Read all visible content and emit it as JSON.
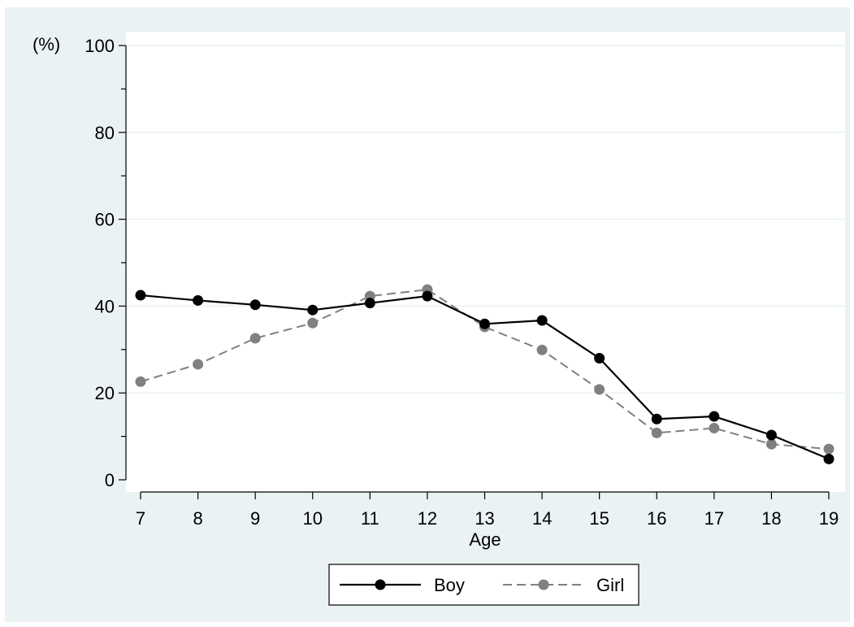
{
  "chart_data": {
    "type": "line",
    "x": [
      7,
      8,
      9,
      10,
      11,
      12,
      13,
      14,
      15,
      16,
      17,
      18,
      19
    ],
    "series": [
      {
        "name": "Boy",
        "values": [
          42.5,
          41.3,
          40.3,
          39.1,
          40.7,
          42.3,
          35.9,
          36.7,
          28.0,
          14.0,
          14.6,
          10.3,
          4.8
        ],
        "color": "#000000",
        "dash": "solid"
      },
      {
        "name": "Girl",
        "values": [
          22.6,
          26.6,
          32.6,
          36.1,
          42.3,
          43.8,
          35.2,
          29.9,
          20.8,
          10.8,
          11.9,
          8.2,
          7.1
        ],
        "color": "#808080",
        "dash": "dashed"
      }
    ],
    "xlabel": "Age",
    "ylabel": "(%)",
    "ylim": [
      0,
      100
    ],
    "xlim": [
      7,
      19
    ],
    "yticks": [
      0,
      20,
      40,
      60,
      80,
      100
    ],
    "xticks": [
      7,
      8,
      9,
      10,
      11,
      12,
      13,
      14,
      15,
      16,
      17,
      18,
      19
    ],
    "grid": true,
    "legend_position": "bottom",
    "plot_background": "#ffffff",
    "outer_background": "#eaf2f3",
    "grid_color": "#eaf2f3"
  }
}
